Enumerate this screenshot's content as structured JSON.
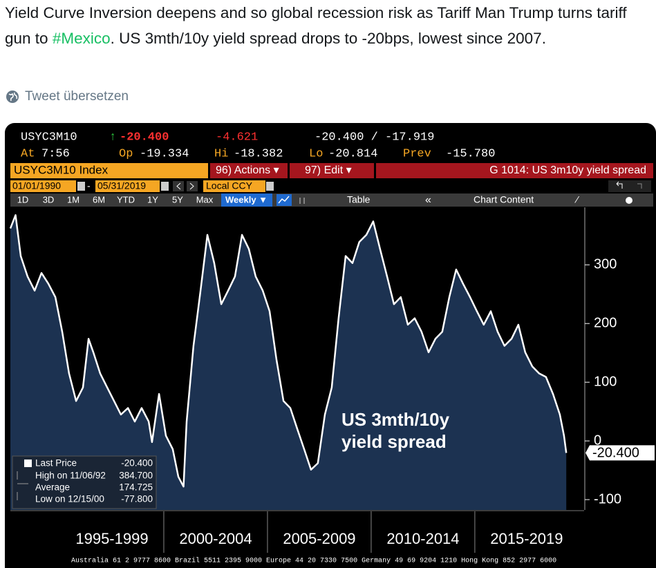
{
  "tweet": {
    "text_before": "Yield Curve Inversion deepens and so global recession risk as Tariff Man Trump turns tariff gun to ",
    "hashtag": "#Mexico",
    "text_after": ". US 3mth/10y yield spread drops to -20bps, lowest since 2007.",
    "translate": "Tweet übersetzen"
  },
  "header": {
    "ticker": "USYC3M10",
    "arrow": "↑",
    "last": "-20.400",
    "change": "-4.621",
    "bid_ask": "-20.400 / -17.919",
    "time_label": "At",
    "time": "7:56",
    "open_label": "Op",
    "open": "-19.334",
    "high_label": "Hi",
    "high": "-18.382",
    "low_label": "Lo",
    "low": "-20.814",
    "prev_label": "Prev",
    "prev": "-15.780"
  },
  "toolbar": {
    "security": "USYC3M10 Index",
    "actions": "96) Actions ▾",
    "edit": "97) Edit ▾",
    "chart_name": "G 1014: US 3m10y yield spread",
    "start_date": "01/01/1990",
    "dash": "-",
    "end_date": "05/31/2019",
    "currency": "Local CCY",
    "ranges": [
      "1D",
      "3D",
      "1M",
      "6M",
      "YTD",
      "1Y",
      "5Y",
      "Max"
    ],
    "frequency": "Weekly ▼",
    "table": "Table",
    "collapse": "«",
    "chart_content": "Chart Content"
  },
  "chart_data": {
    "type": "area",
    "x": [
      1992.6,
      1992.85,
      1993.1,
      1993.43,
      1993.77,
      1994.1,
      1994.43,
      1994.77,
      1995.1,
      1995.43,
      1995.77,
      1996.1,
      1996.37,
      1996.6,
      1996.93,
      1997.27,
      1997.6,
      1997.93,
      1998.27,
      1998.6,
      1998.93,
      1999.27,
      1999.43,
      1999.77,
      2000.1,
      2000.43,
      2000.7,
      2000.95,
      2001.1,
      2001.43,
      2001.77,
      2002.1,
      2002.43,
      2002.77,
      2003.1,
      2003.43,
      2003.77,
      2004.1,
      2004.43,
      2004.77,
      2005.1,
      2005.43,
      2005.77,
      2006.1,
      2006.43,
      2006.77,
      2007.1,
      2007.43,
      2007.77,
      2008.1,
      2008.43,
      2008.77,
      2009.1,
      2009.43,
      2009.77,
      2010.1,
      2010.43,
      2010.77,
      2011.1,
      2011.43,
      2011.77,
      2012.1,
      2012.43,
      2012.77,
      2013.1,
      2013.43,
      2013.77,
      2014.1,
      2014.43,
      2014.77,
      2015.1,
      2015.43,
      2015.77,
      2016.1,
      2016.43,
      2016.77,
      2017.1,
      2017.43,
      2017.77,
      2018.1,
      2018.43,
      2018.77,
      2019.1,
      2019.3,
      2019.41
    ],
    "series": [
      {
        "name": "Last Price",
        "color": "#ffffff",
        "fill": "#1c3251",
        "values": [
          362,
          384.7,
          315,
          280,
          256,
          286,
          268,
          245,
          186,
          115,
          68,
          91,
          174,
          151,
          115,
          91,
          68,
          45,
          56,
          33,
          56,
          33,
          -2,
          80,
          9,
          -14,
          -61,
          -77.8,
          33,
          162,
          256,
          351,
          303,
          233,
          256,
          280,
          351,
          327,
          280,
          256,
          221,
          139,
          68,
          56,
          21,
          -14,
          -49,
          -38,
          45,
          91,
          209,
          315,
          303,
          339,
          351,
          374,
          327,
          280,
          233,
          245,
          198,
          209,
          186,
          151,
          174,
          186,
          245,
          292,
          268,
          245,
          221,
          198,
          221,
          186,
          162,
          174,
          198,
          151,
          127,
          115,
          109,
          80,
          45,
          9,
          -20.4
        ]
      }
    ],
    "xlim": [
      1992.6,
      2020.27
    ],
    "xticks": [
      {
        "value": 1997.5,
        "label": "1995-1999"
      },
      {
        "value": 2002.5,
        "label": "2000-2004"
      },
      {
        "value": 2007.5,
        "label": "2005-2009"
      },
      {
        "value": 2012.5,
        "label": "2010-2014"
      },
      {
        "value": 2017.5,
        "label": "2015-2019"
      }
    ],
    "ylim": [
      -117.6,
      398
    ],
    "yticks": [
      -100,
      0,
      100,
      200,
      300
    ],
    "last_value_tag": "-20.400",
    "annotation": [
      "US 3mth/10y",
      "yield spread"
    ],
    "legend": {
      "last_price": "-20.400",
      "high_label": "High on 11/06/92",
      "high": "384.700",
      "average_label": "Average",
      "average": "174.725",
      "low_label": "Low on 12/15/00",
      "low": "-77.800"
    }
  },
  "footer": "Australia 61 2 9777 8600 Brazil 5511 2395 9000 Europe 44 20 7330 7500 Germany 49 69 9204 1210 Hong Kong 852 2977 6000"
}
